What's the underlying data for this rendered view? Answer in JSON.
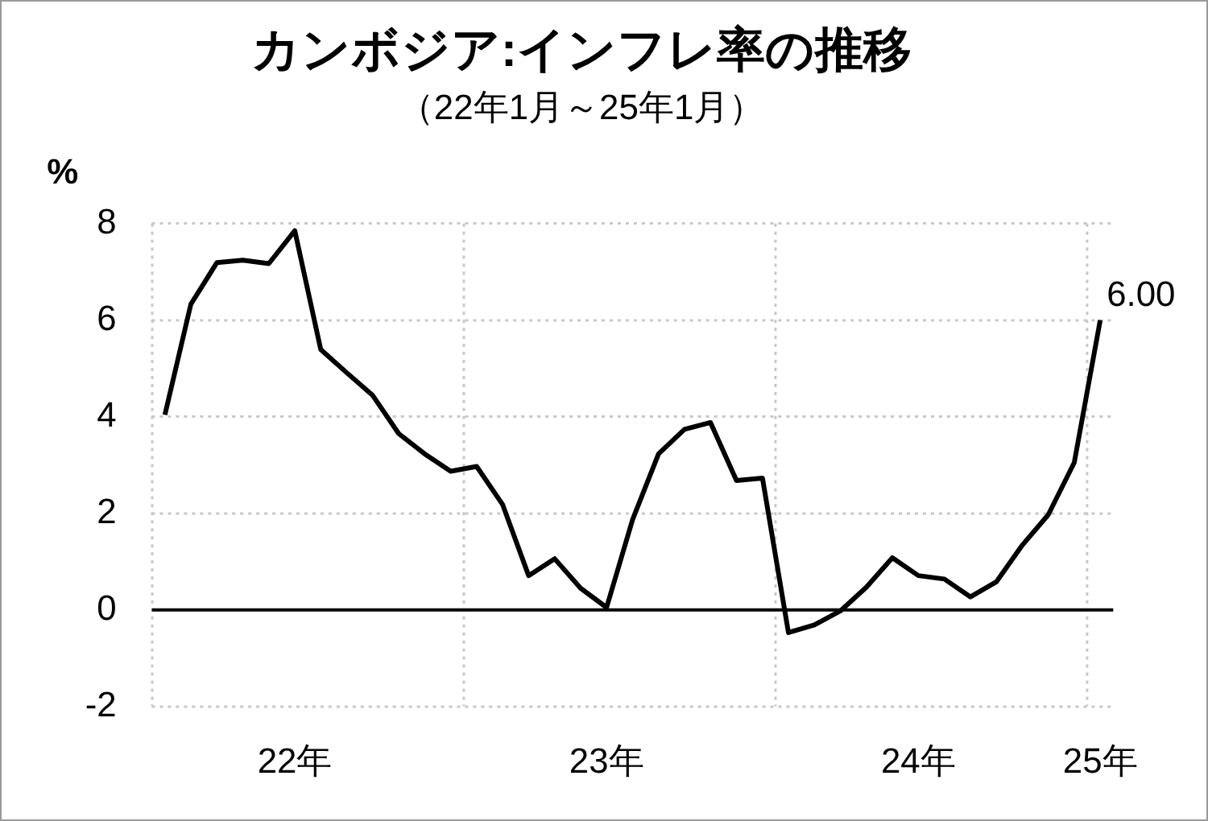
{
  "chart_data": {
    "type": "line",
    "title": "カンボジア:インフレ率の推移",
    "subtitle": "（22年1月～25年1月）",
    "ylabel": "%",
    "categories": [
      null,
      null,
      null,
      null,
      null,
      "22年",
      null,
      null,
      null,
      null,
      null,
      null,
      null,
      null,
      null,
      null,
      null,
      "23年",
      null,
      null,
      null,
      null,
      null,
      null,
      null,
      null,
      null,
      null,
      null,
      "24年",
      null,
      null,
      null,
      null,
      null,
      null,
      "25年"
    ],
    "series": [
      {
        "color": "#000000",
        "values": [
          4.04,
          6.33,
          7.19,
          7.24,
          7.17,
          7.85,
          5.39,
          4.91,
          4.44,
          3.65,
          3.23,
          2.87,
          2.97,
          2.18,
          0.71,
          1.06,
          0.45,
          0.05,
          1.87,
          3.23,
          3.74,
          3.88,
          2.68,
          2.73,
          -0.47,
          -0.31,
          -0.02,
          0.47,
          1.08,
          0.71,
          0.64,
          0.27,
          0.58,
          1.34,
          1.97,
          3.05,
          6.0
        ],
        "value_labels": [
          null,
          null,
          null,
          null,
          null,
          null,
          null,
          null,
          null,
          null,
          null,
          null,
          null,
          null,
          null,
          null,
          null,
          null,
          null,
          null,
          null,
          null,
          null,
          null,
          null,
          null,
          null,
          null,
          null,
          null,
          null,
          null,
          null,
          null,
          null,
          null,
          "6.00"
        ]
      }
    ],
    "ylim": [
      -2,
      8
    ],
    "yticks": [
      -2,
      0,
      2,
      4,
      6,
      8
    ],
    "grid": true,
    "legend": false,
    "marker": "none",
    "line_style": "solid",
    "ref_lines": [
      {
        "axis": "y",
        "value": 0,
        "color": "#000000"
      }
    ]
  }
}
